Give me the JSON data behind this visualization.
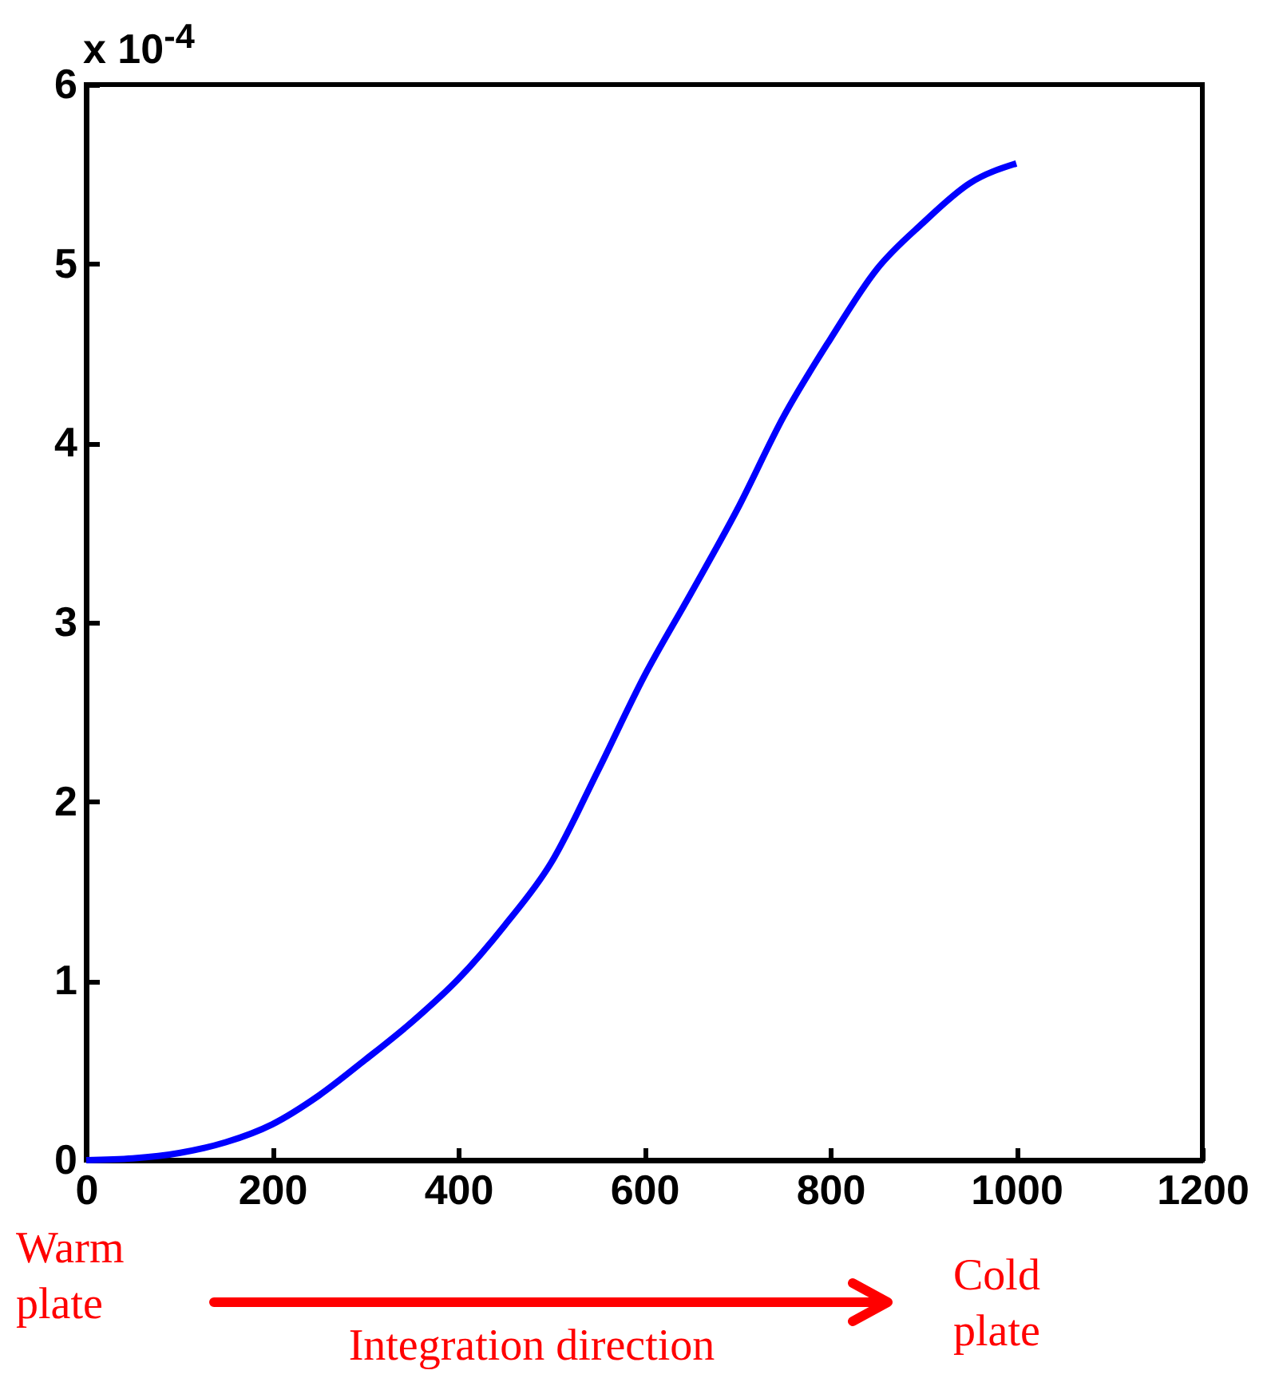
{
  "chart_data": {
    "type": "line",
    "x": [
      0,
      50,
      100,
      150,
      200,
      250,
      300,
      350,
      400,
      450,
      500,
      550,
      600,
      650,
      700,
      750,
      800,
      850,
      900,
      950,
      1000
    ],
    "series": [
      {
        "color": "#0000ff",
        "values": [
          0,
          0.01,
          0.04,
          0.1,
          0.2,
          0.36,
          0.56,
          0.77,
          1.01,
          1.31,
          1.66,
          2.17,
          2.7,
          3.16,
          3.63,
          4.15,
          4.58,
          4.97,
          5.23,
          5.45,
          5.56
        ]
      }
    ],
    "xlim": [
      0,
      1200
    ],
    "xticks": [
      0,
      200,
      400,
      600,
      800,
      1000,
      1200
    ],
    "ylim": [
      0,
      6
    ],
    "yticks": [
      0,
      1,
      2,
      3,
      4,
      5,
      6
    ],
    "grid": false,
    "legend": false,
    "marker": "none",
    "line_style": "solid",
    "annotations": [
      "x 10$^{-4}$",
      "Warm plate",
      "Integration direction",
      "Cold plate"
    ]
  }
}
